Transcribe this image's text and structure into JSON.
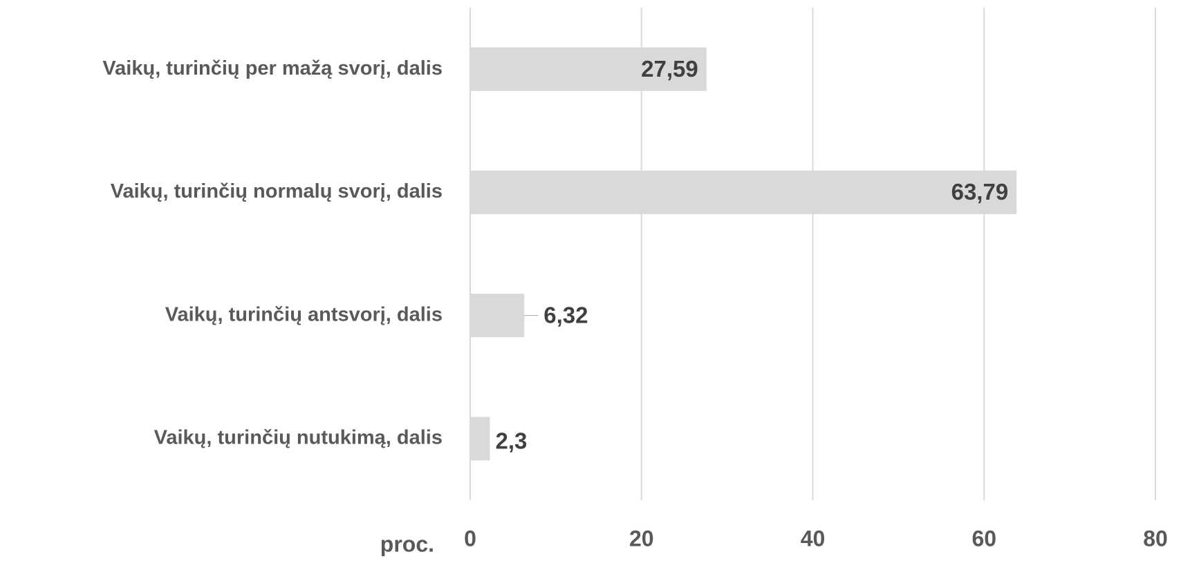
{
  "chart_data": {
    "type": "bar",
    "orientation": "horizontal",
    "categories": [
      "Vaikų, turinčių per mažą svorį, dalis",
      "Vaikų, turinčių normalų svorį, dalis",
      "Vaikų, turinčių antsvorį, dalis",
      "Vaikų, turinčių nutukimą, dalis"
    ],
    "values": [
      27.59,
      63.79,
      6.32,
      2.3
    ],
    "value_labels": [
      "27,59",
      "63,79",
      "6,32",
      "2,3"
    ],
    "color": "#d9d9d9",
    "x_label": "proc.",
    "xlim": [
      0,
      80
    ],
    "xticks": [
      0,
      20,
      40,
      60,
      80
    ],
    "grid": true
  }
}
